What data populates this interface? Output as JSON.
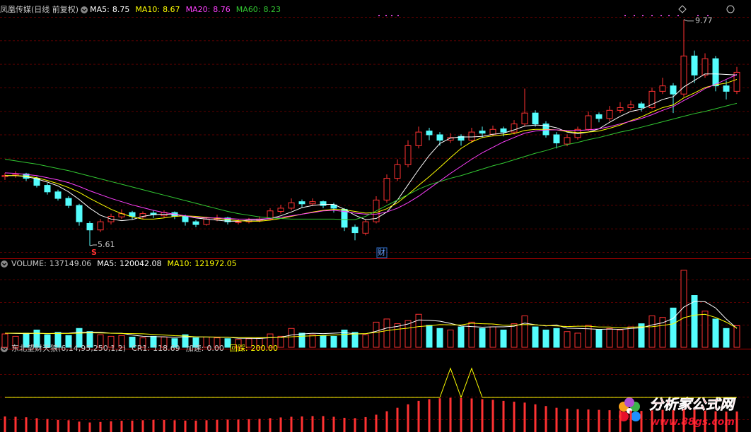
{
  "chart_data": [
    {
      "type": "candlestick",
      "title": "凤凰传媒(日线 前复权)",
      "sep": ":",
      "up_color": "#ff3232",
      "down_color": "#54fcfc",
      "ylim": [
        5.39,
        10.0
      ],
      "candles": [
        [
          6.88,
          6.95,
          6.82,
          6.9
        ],
        [
          6.9,
          6.98,
          6.86,
          6.92
        ],
        [
          6.93,
          6.95,
          6.8,
          6.85
        ],
        [
          6.85,
          6.88,
          6.68,
          6.72
        ],
        [
          6.72,
          6.76,
          6.55,
          6.6
        ],
        [
          6.6,
          6.64,
          6.44,
          6.48
        ],
        [
          6.48,
          6.52,
          6.3,
          6.35
        ],
        [
          6.35,
          6.38,
          5.98,
          6.05
        ],
        [
          6.02,
          6.06,
          5.61,
          5.9
        ],
        [
          5.9,
          6.1,
          5.86,
          6.05
        ],
        [
          6.05,
          6.2,
          6.0,
          6.15
        ],
        [
          6.14,
          6.28,
          6.1,
          6.2
        ],
        [
          6.22,
          6.25,
          6.1,
          6.15
        ],
        [
          6.14,
          6.24,
          6.1,
          6.2
        ],
        [
          6.21,
          6.26,
          6.12,
          6.18
        ],
        [
          6.16,
          6.26,
          6.12,
          6.22
        ],
        [
          6.22,
          6.24,
          6.1,
          6.15
        ],
        [
          6.15,
          6.18,
          5.98,
          6.05
        ],
        [
          6.05,
          6.08,
          5.95,
          6.0
        ],
        [
          6.0,
          6.14,
          5.98,
          6.1
        ],
        [
          6.1,
          6.18,
          6.06,
          6.12
        ],
        [
          6.12,
          6.14,
          6.0,
          6.05
        ],
        [
          6.04,
          6.1,
          6.0,
          6.05
        ],
        [
          6.05,
          6.12,
          6.02,
          6.08
        ],
        [
          6.07,
          6.15,
          6.04,
          6.1
        ],
        [
          6.1,
          6.3,
          6.08,
          6.25
        ],
        [
          6.24,
          6.36,
          6.2,
          6.3
        ],
        [
          6.3,
          6.48,
          6.26,
          6.4
        ],
        [
          6.42,
          6.46,
          6.32,
          6.38
        ],
        [
          6.38,
          6.48,
          6.34,
          6.42
        ],
        [
          6.42,
          6.44,
          6.3,
          6.35
        ],
        [
          6.36,
          6.4,
          6.22,
          6.3
        ],
        [
          6.28,
          6.3,
          5.88,
          5.95
        ],
        [
          5.95,
          6.0,
          5.71,
          5.85
        ],
        [
          5.84,
          6.1,
          5.8,
          6.05
        ],
        [
          6.05,
          6.52,
          6.02,
          6.45
        ],
        [
          6.45,
          6.92,
          6.4,
          6.85
        ],
        [
          6.85,
          7.2,
          6.8,
          7.1
        ],
        [
          7.1,
          7.55,
          7.05,
          7.45
        ],
        [
          7.45,
          7.8,
          7.4,
          7.7
        ],
        [
          7.72,
          7.78,
          7.55,
          7.65
        ],
        [
          7.65,
          7.7,
          7.45,
          7.55
        ],
        [
          7.55,
          7.68,
          7.5,
          7.6
        ],
        [
          7.62,
          7.66,
          7.45,
          7.55
        ],
        [
          7.55,
          7.78,
          7.5,
          7.7
        ],
        [
          7.72,
          7.8,
          7.6,
          7.68
        ],
        [
          7.66,
          7.82,
          7.62,
          7.75
        ],
        [
          7.76,
          7.8,
          7.62,
          7.7
        ],
        [
          7.7,
          7.92,
          7.66,
          7.85
        ],
        [
          7.85,
          8.5,
          7.8,
          8.05
        ],
        [
          8.05,
          8.1,
          7.8,
          7.85
        ],
        [
          7.85,
          7.9,
          7.6,
          7.65
        ],
        [
          7.65,
          7.7,
          7.4,
          7.5
        ],
        [
          7.48,
          7.66,
          7.44,
          7.6
        ],
        [
          7.6,
          7.8,
          7.56,
          7.75
        ],
        [
          7.75,
          8.08,
          7.72,
          8.0
        ],
        [
          8.02,
          8.06,
          7.88,
          7.95
        ],
        [
          7.95,
          8.18,
          7.9,
          8.1
        ],
        [
          8.1,
          8.25,
          8.05,
          8.15
        ],
        [
          8.15,
          8.28,
          8.1,
          8.2
        ],
        [
          8.22,
          8.26,
          8.08,
          8.15
        ],
        [
          8.15,
          8.52,
          8.12,
          8.45
        ],
        [
          8.45,
          8.7,
          8.4,
          8.55
        ],
        [
          8.55,
          8.6,
          8.05,
          8.4
        ],
        [
          8.4,
          9.77,
          8.35,
          9.1
        ],
        [
          9.1,
          9.2,
          8.6,
          8.75
        ],
        [
          8.75,
          9.15,
          8.7,
          9.05
        ],
        [
          9.05,
          9.1,
          8.45,
          8.55
        ],
        [
          8.55,
          8.65,
          8.3,
          8.45
        ],
        [
          8.45,
          8.9,
          8.4,
          8.8
        ]
      ],
      "series": [
        {
          "name": "MA5",
          "color": "#ffffff",
          "current": 8.75,
          "values": [
            6.9,
            6.9,
            6.88,
            6.84,
            6.78,
            6.71,
            6.6,
            6.46,
            6.3,
            6.17,
            6.1,
            6.07,
            6.09,
            6.15,
            6.18,
            6.19,
            6.18,
            6.16,
            6.12,
            6.1,
            6.08,
            6.06,
            6.06,
            6.08,
            6.08,
            6.11,
            6.16,
            6.23,
            6.31,
            6.35,
            6.37,
            6.37,
            6.28,
            6.17,
            6.09,
            6.11,
            6.23,
            6.45,
            6.73,
            7.01,
            7.27,
            7.49,
            7.59,
            7.61,
            7.61,
            7.62,
            7.66,
            7.68,
            7.74,
            7.81,
            7.83,
            7.82,
            7.78,
            7.7,
            7.67,
            7.7,
            7.76,
            7.88,
            7.99,
            8.08,
            8.12,
            8.21,
            8.3,
            8.35,
            8.53,
            8.65,
            8.77,
            8.77,
            8.76,
            8.75
          ]
        },
        {
          "name": "MA10",
          "color": "#ffff00",
          "current": 8.67,
          "values": [
            6.9,
            6.9,
            6.89,
            6.86,
            6.81,
            6.75,
            6.68,
            6.59,
            6.48,
            6.38,
            6.28,
            6.2,
            6.14,
            6.1,
            6.1,
            6.12,
            6.15,
            6.16,
            6.15,
            6.13,
            6.11,
            6.09,
            6.07,
            6.06,
            6.06,
            6.08,
            6.11,
            6.15,
            6.19,
            6.23,
            6.26,
            6.28,
            6.27,
            6.24,
            6.21,
            6.22,
            6.29,
            6.4,
            6.55,
            6.72,
            6.88,
            7.05,
            7.23,
            7.4,
            7.52,
            7.6,
            7.63,
            7.65,
            7.67,
            7.73,
            7.75,
            7.75,
            7.74,
            7.71,
            7.69,
            7.7,
            7.72,
            7.77,
            7.83,
            7.91,
            7.98,
            8.07,
            8.15,
            8.2,
            8.33,
            8.42,
            8.52,
            8.57,
            8.6,
            8.67
          ]
        },
        {
          "name": "MA20",
          "color": "#ff40ff",
          "current": 8.76,
          "values": [
            6.95,
            6.94,
            6.92,
            6.9,
            6.86,
            6.82,
            6.77,
            6.7,
            6.62,
            6.55,
            6.48,
            6.42,
            6.36,
            6.31,
            6.26,
            6.22,
            6.19,
            6.16,
            6.13,
            6.12,
            6.12,
            6.11,
            6.1,
            6.1,
            6.1,
            6.11,
            6.13,
            6.16,
            6.19,
            6.22,
            6.25,
            6.26,
            6.24,
            6.21,
            6.19,
            6.19,
            6.23,
            6.3,
            6.4,
            6.52,
            6.66,
            6.8,
            6.94,
            7.07,
            7.2,
            7.32,
            7.42,
            7.52,
            7.6,
            7.68,
            7.72,
            7.74,
            7.74,
            7.73,
            7.73,
            7.74,
            7.76,
            7.8,
            7.85,
            7.9,
            7.95,
            8.02,
            8.1,
            8.17,
            8.28,
            8.38,
            8.5,
            8.58,
            8.67,
            8.76
          ]
        },
        {
          "name": "MA60",
          "color": "#32c832",
          "current": 8.23,
          "values": [
            7.2,
            7.17,
            7.14,
            7.11,
            7.07,
            7.03,
            6.99,
            6.94,
            6.89,
            6.84,
            6.79,
            6.74,
            6.69,
            6.64,
            6.59,
            6.54,
            6.49,
            6.44,
            6.39,
            6.34,
            6.29,
            6.24,
            6.2,
            6.17,
            6.14,
            6.12,
            6.11,
            6.1,
            6.1,
            6.1,
            6.1,
            6.1,
            6.09,
            6.09,
            6.15,
            6.25,
            6.35,
            6.45,
            6.55,
            6.65,
            6.73,
            6.79,
            6.85,
            6.9,
            6.96,
            7.02,
            7.08,
            7.13,
            7.19,
            7.25,
            7.31,
            7.36,
            7.42,
            7.47,
            7.51,
            7.56,
            7.6,
            7.65,
            7.7,
            7.74,
            7.79,
            7.84,
            7.89,
            7.94,
            7.99,
            8.04,
            8.08,
            8.13,
            8.18,
            8.23
          ]
        }
      ],
      "max_label": 9.77,
      "min_label": 5.61,
      "signal": "S",
      "note": "财"
    },
    {
      "type": "bar",
      "title": "VOLUME",
      "current": 137149.06,
      "ylim": [
        0,
        503000
      ],
      "values": [
        85000,
        70000,
        90000,
        110000,
        80000,
        95000,
        75000,
        120000,
        100000,
        80000,
        70000,
        75000,
        65000,
        60000,
        70000,
        65000,
        55000,
        80000,
        60000,
        65000,
        60000,
        55000,
        50000,
        55000,
        60000,
        85000,
        70000,
        120000,
        90000,
        80000,
        75000,
        70000,
        110000,
        95000,
        80000,
        160000,
        180000,
        150000,
        170000,
        210000,
        140000,
        120000,
        110000,
        130000,
        160000,
        120000,
        130000,
        110000,
        150000,
        200000,
        130000,
        110000,
        120000,
        100000,
        90000,
        140000,
        110000,
        120000,
        110000,
        130000,
        150000,
        200000,
        190000,
        250000,
        490000,
        330000,
        230000,
        180000,
        120000,
        137149.06
      ],
      "series": [
        {
          "name": "MA5",
          "color": "#ffffff",
          "current": 120042.08,
          "values": [
            90000,
            88000,
            87000,
            89000,
            87000,
            89000,
            90000,
            96000,
            96000,
            96000,
            89000,
            89000,
            78000,
            70000,
            68000,
            67000,
            63000,
            67000,
            66000,
            65000,
            64000,
            64000,
            58000,
            57000,
            56000,
            61000,
            64000,
            78000,
            85000,
            89000,
            87000,
            90000,
            93000,
            86000,
            86000,
            102000,
            123000,
            133000,
            148000,
            174000,
            172000,
            166000,
            152000,
            136000,
            132000,
            128000,
            130000,
            130000,
            134000,
            154000,
            144000,
            136000,
            142000,
            122000,
            120000,
            118000,
            114000,
            116000,
            114000,
            120000,
            124000,
            142000,
            156000,
            184000,
            256000,
            292000,
            290000,
            250000,
            180000,
            120042.08
          ]
        },
        {
          "name": "MA10",
          "color": "#ffff00",
          "current": 121972.05,
          "values": [
            90000,
            90000,
            89000,
            89000,
            88000,
            88000,
            88000,
            90000,
            92000,
            91000,
            90000,
            88000,
            87000,
            86000,
            82000,
            78000,
            74000,
            72000,
            67000,
            66000,
            65000,
            64000,
            62000,
            62000,
            61000,
            62000,
            63000,
            67000,
            71000,
            73000,
            75000,
            78000,
            82000,
            85000,
            87000,
            95000,
            106000,
            115000,
            122000,
            132000,
            137000,
            144000,
            143000,
            142000,
            153000,
            150000,
            148000,
            141000,
            141000,
            145000,
            143000,
            138000,
            136000,
            132000,
            134000,
            134000,
            129000,
            129000,
            124000,
            128000,
            130000,
            131000,
            139000,
            149000,
            188000,
            205000,
            210000,
            190000,
            160000,
            121972.05
          ]
        }
      ]
    },
    {
      "type": "bar",
      "title": "东北望财天狼(6,14,95,250,1,2)",
      "ylim": [
        0,
        457
      ],
      "series": [
        {
          "name": "CR1",
          "color": "#ff3232",
          "current": 118.69,
          "values": [
            90,
            88,
            85,
            80,
            75,
            70,
            68,
            60,
            55,
            58,
            62,
            65,
            66,
            68,
            70,
            70,
            68,
            66,
            66,
            68,
            70,
            72,
            72,
            74,
            76,
            80,
            84,
            88,
            90,
            92,
            92,
            88,
            82,
            80,
            86,
            100,
            120,
            140,
            160,
            180,
            190,
            195,
            198,
            196,
            194,
            190,
            186,
            180,
            175,
            170,
            160,
            150,
            140,
            135,
            132,
            130,
            128,
            126,
            125,
            124,
            122,
            125,
            128,
            126,
            130,
            128,
            124,
            120,
            118,
            118.69
          ]
        },
        {
          "name": "加速",
          "color": "#ffffff",
          "current": {
            "value": 0,
            "label": "0.00"
          }
        },
        {
          "name": "回踩",
          "color": "#ffff00",
          "current": {
            "value": 200,
            "label": "200.00"
          },
          "values": [
            200,
            200,
            200,
            200,
            200,
            200,
            200,
            200,
            200,
            200,
            200,
            200,
            200,
            200,
            200,
            200,
            200,
            200,
            200,
            200,
            200,
            200,
            200,
            200,
            200,
            200,
            200,
            200,
            200,
            200,
            200,
            200,
            200,
            200,
            200,
            200,
            200,
            200,
            200,
            200,
            200,
            200,
            368,
            200,
            368,
            200,
            200,
            200,
            200,
            200,
            200,
            200,
            200,
            200,
            200,
            200,
            200,
            200,
            200,
            200,
            200,
            200,
            200,
            200,
            200,
            200,
            200,
            200,
            200,
            200
          ]
        }
      ]
    }
  ],
  "watermark": {
    "name": "分析家公式网",
    "url": "www.88gs.com"
  }
}
